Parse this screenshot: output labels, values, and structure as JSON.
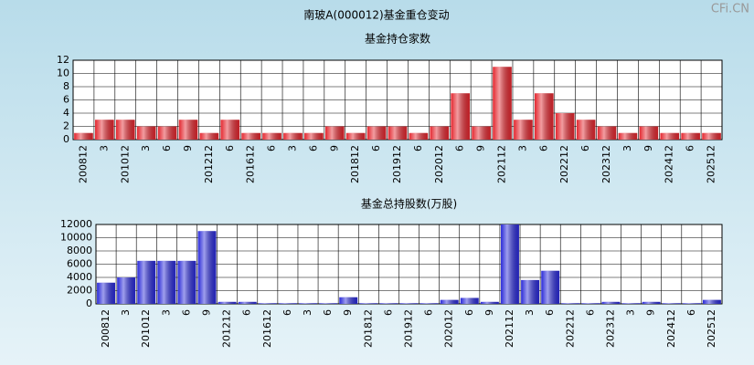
{
  "title": "南玻A(000012)基金重仓变动",
  "watermark": "CFi.CN",
  "chart_data": [
    {
      "type": "bar",
      "title": "基金持仓家数",
      "categories": [
        "200812",
        "3",
        "201012",
        "3",
        "6",
        "9",
        "201212",
        "6",
        "201612",
        "6",
        "3",
        "6",
        "9",
        "201812",
        "6",
        "201912",
        "6",
        "202012",
        "6",
        "9",
        "202112",
        "3",
        "6",
        "202212",
        "6",
        "202312",
        "3",
        "9",
        "202412",
        "6",
        "202512"
      ],
      "values": [
        1,
        3,
        3,
        2,
        2,
        3,
        1,
        3,
        1,
        1,
        1,
        1,
        2,
        1,
        2,
        2,
        1,
        2,
        7,
        2,
        11,
        3,
        7,
        4,
        3,
        2,
        1,
        2,
        1,
        1,
        1
      ],
      "color": "#e3262e",
      "ylim": [
        0,
        12
      ],
      "yticks": [
        0,
        2,
        4,
        6,
        8,
        10,
        12
      ],
      "grid": true
    },
    {
      "type": "bar",
      "title": "基金总持股数(万股)",
      "categories": [
        "200812",
        "3",
        "201012",
        "3",
        "6",
        "9",
        "201212",
        "6",
        "201612",
        "6",
        "3",
        "6",
        "9",
        "201812",
        "6",
        "201912",
        "6",
        "202012",
        "6",
        "9",
        "202112",
        "3",
        "6",
        "202212",
        "6",
        "202312",
        "3",
        "9",
        "202412",
        "6",
        "202512"
      ],
      "values": [
        3200,
        4000,
        6500,
        6500,
        6500,
        11000,
        300,
        300,
        100,
        100,
        100,
        100,
        1000,
        100,
        100,
        100,
        100,
        600,
        900,
        300,
        12000,
        3600,
        5000,
        100,
        100,
        300,
        100,
        300,
        100,
        100,
        600
      ],
      "color": "#2a2ad8",
      "ylim": [
        0,
        12000
      ],
      "yticks": [
        0,
        2000,
        4000,
        6000,
        8000,
        10000,
        12000
      ],
      "grid": true
    }
  ]
}
